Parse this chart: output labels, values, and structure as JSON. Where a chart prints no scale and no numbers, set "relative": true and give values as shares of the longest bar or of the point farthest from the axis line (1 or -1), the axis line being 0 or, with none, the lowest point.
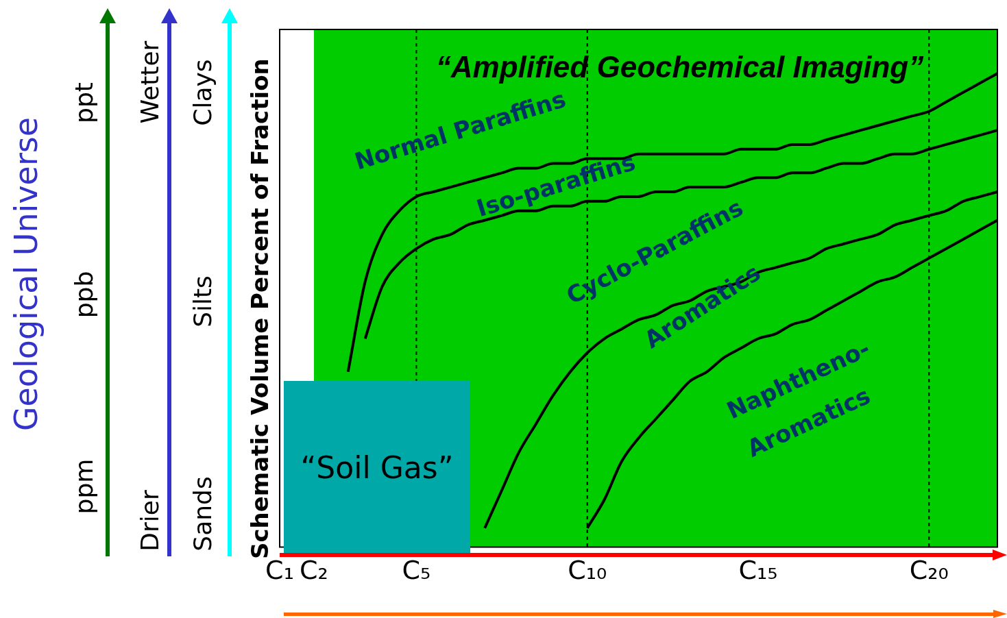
{
  "chart_data": {
    "type": "line",
    "relative": true,
    "title": "“Amplified Geochemical Imaging”",
    "ylabel": "Schematic Volume Percent of Fraction",
    "categories": [
      "C₁",
      null,
      "C₂",
      null,
      null,
      null,
      null,
      null,
      "C₅",
      null,
      null,
      null,
      null,
      null,
      null,
      null,
      null,
      null,
      "C₁₀",
      null,
      null,
      null,
      null,
      null,
      null,
      null,
      null,
      null,
      "C₁₅",
      null,
      null,
      null,
      null,
      null,
      null,
      null,
      null,
      null,
      "C₂₀",
      null,
      null,
      null,
      null
    ],
    "series": [
      {
        "color": "#000000",
        "values": [
          null,
          null,
          null,
          null,
          0.37,
          0.56,
          0.66,
          0.71,
          0.74,
          0.75,
          0.76,
          0.77,
          0.78,
          0.79,
          0.8,
          0.8,
          0.81,
          0.81,
          0.82,
          0.82,
          0.82,
          0.83,
          0.83,
          0.83,
          0.83,
          0.83,
          0.83,
          0.84,
          0.84,
          0.84,
          0.85,
          0.85,
          0.86,
          0.87,
          0.88,
          0.89,
          0.9,
          0.91,
          0.92,
          0.94,
          0.96,
          0.98,
          1.0
        ]
      },
      {
        "color": "#000000",
        "values": [
          null,
          null,
          null,
          null,
          null,
          0.44,
          0.55,
          0.6,
          0.63,
          0.65,
          0.66,
          0.68,
          0.69,
          0.7,
          0.71,
          0.71,
          0.72,
          0.72,
          0.73,
          0.73,
          0.74,
          0.74,
          0.75,
          0.75,
          0.76,
          0.76,
          0.76,
          0.77,
          0.78,
          0.78,
          0.79,
          0.79,
          0.8,
          0.81,
          0.81,
          0.82,
          0.83,
          0.83,
          0.84,
          0.85,
          0.86,
          0.87,
          0.88
        ]
      },
      {
        "color": "#000000",
        "values": [
          null,
          null,
          null,
          null,
          null,
          null,
          null,
          null,
          null,
          null,
          null,
          null,
          0.04,
          0.12,
          0.2,
          0.26,
          0.32,
          0.37,
          0.41,
          0.44,
          0.46,
          0.48,
          0.49,
          0.51,
          0.52,
          0.54,
          0.55,
          0.56,
          0.58,
          0.59,
          0.6,
          0.61,
          0.63,
          0.64,
          0.65,
          0.66,
          0.68,
          0.69,
          0.7,
          0.71,
          0.73,
          0.74,
          0.75
        ]
      },
      {
        "color": "#000000",
        "values": [
          null,
          null,
          null,
          null,
          null,
          null,
          null,
          null,
          null,
          null,
          null,
          null,
          null,
          null,
          null,
          null,
          null,
          null,
          0.04,
          0.1,
          0.18,
          0.23,
          0.27,
          0.31,
          0.35,
          0.37,
          0.4,
          0.42,
          0.44,
          0.45,
          0.47,
          0.48,
          0.5,
          0.52,
          0.54,
          0.56,
          0.57,
          0.59,
          0.61,
          0.63,
          0.65,
          0.67,
          0.69
        ]
      }
    ],
    "ref_lines": [
      {
        "axis": "x",
        "value": "C₅",
        "line_style": "dashed"
      },
      {
        "axis": "x",
        "value": "C₁₀",
        "line_style": "dashed"
      },
      {
        "axis": "x",
        "value": "C₂₀",
        "line_style": "dashed"
      }
    ],
    "annotations": [
      "“Soil Gas”",
      "Geological Universe",
      "ppm",
      "ppb",
      "ppt",
      "Drier",
      "Wetter",
      "Sands",
      "Silts",
      "Clays",
      "Normal Paraffins",
      "Iso-paraffins",
      "Cyclo-Paraffins",
      "Aromatics",
      "Naphtheno-",
      "Aromatics"
    ],
    "grid": false,
    "legend": false,
    "marker": "none",
    "line_style": "solid"
  }
}
